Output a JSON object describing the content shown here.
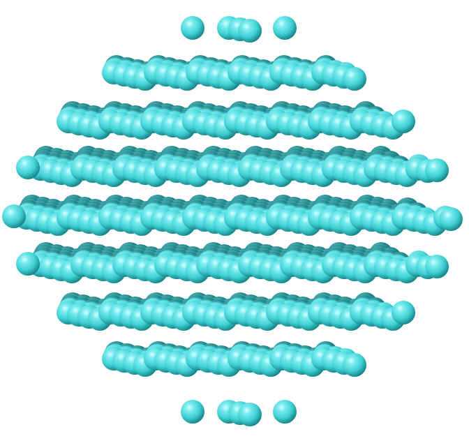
{
  "figure": {
    "subject": "atomic-cluster",
    "shape": "roughly spherical crystalline cluster rendered as spheres",
    "background_color": "#ffffff",
    "atom_color": "#3fd0d4",
    "atom_highlight": "#c9fbfd",
    "atom_shadow": "#0f6e72",
    "layer_count": 9
  }
}
